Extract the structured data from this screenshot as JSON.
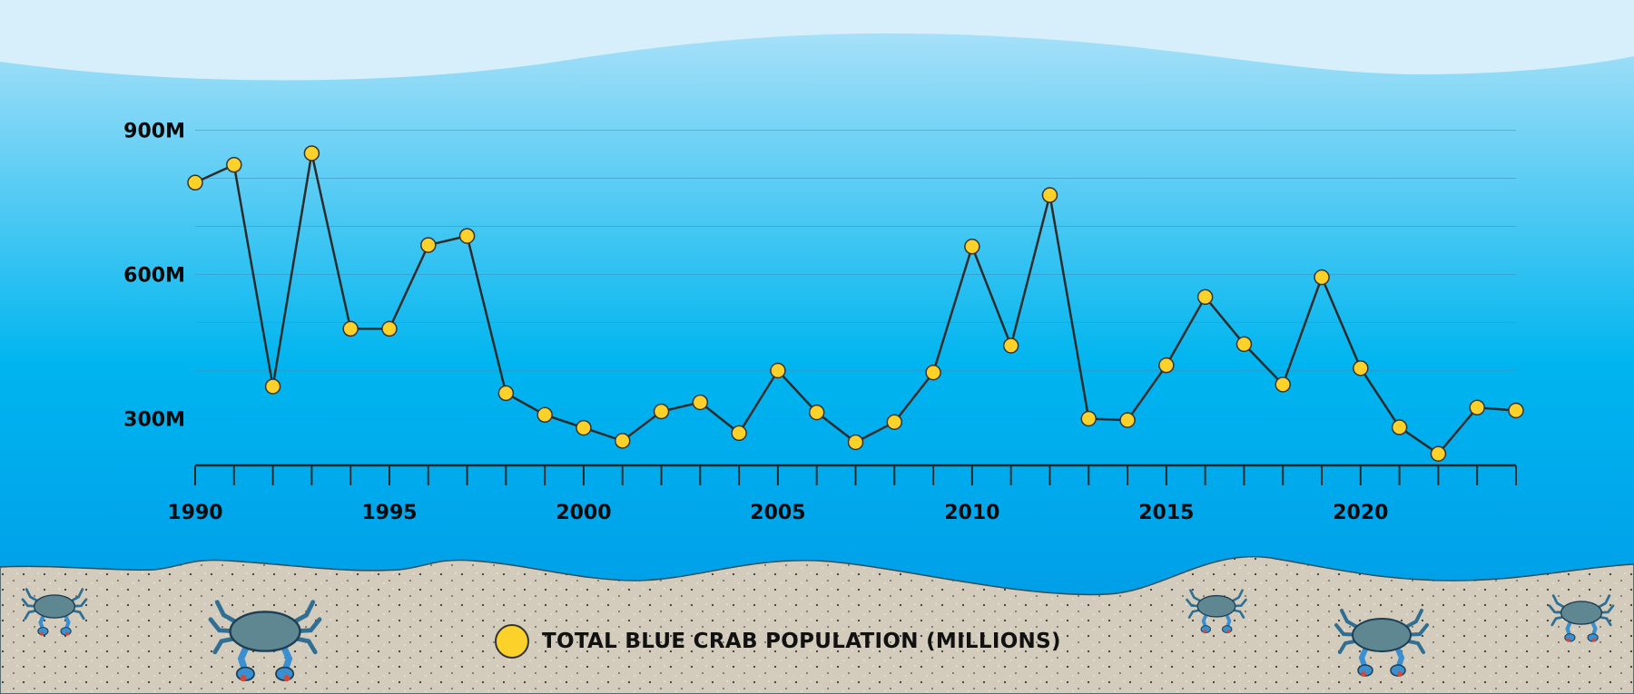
{
  "chart_data": {
    "type": "line",
    "x": [
      1990,
      1991,
      1992,
      1993,
      1994,
      1995,
      1996,
      1997,
      1998,
      1999,
      2000,
      2001,
      2002,
      2003,
      2004,
      2005,
      2006,
      2007,
      2008,
      2009,
      2010,
      2011,
      2012,
      2013,
      2014,
      2015,
      2016,
      2017,
      2018,
      2019,
      2020,
      2021,
      2022,
      2023,
      2024
    ],
    "series": [
      {
        "name": "TOTAL BLUE CRAB POPULATION (MILLIONS)",
        "values": [
          791,
          828,
          367,
          852,
          487,
          487,
          661,
          680,
          353,
          308,
          281,
          254,
          315,
          334,
          270,
          400,
          313,
          251,
          293,
          396,
          658,
          452,
          765,
          300,
          297,
          411,
          553,
          455,
          371,
          594,
          405,
          282,
          227,
          323,
          317
        ],
        "color": "#fcd12a"
      }
    ],
    "y_ticks": [
      {
        "value": 900,
        "label": "900M"
      },
      {
        "value": 600,
        "label": "600M"
      },
      {
        "value": 300,
        "label": "300M"
      }
    ],
    "x_tick_labels": [
      "1990",
      "1995",
      "2000",
      "2005",
      "2010",
      "2015",
      "2020"
    ],
    "ylim": [
      200,
      900
    ],
    "xlim": [
      1990,
      2024
    ],
    "grid": true,
    "legend": "bottom-center",
    "line_color": "#2b2b2b"
  },
  "legend": {
    "label": "TOTAL BLUE CRAB POPULATION (MILLIONS)"
  },
  "colors": {
    "sky": "#d6effa",
    "water_top": "#a6e0f8",
    "water_mid": "#00b5ef",
    "water_bottom": "#0096e6",
    "sand": "#d3cbbb",
    "crab": "#5f8792"
  }
}
